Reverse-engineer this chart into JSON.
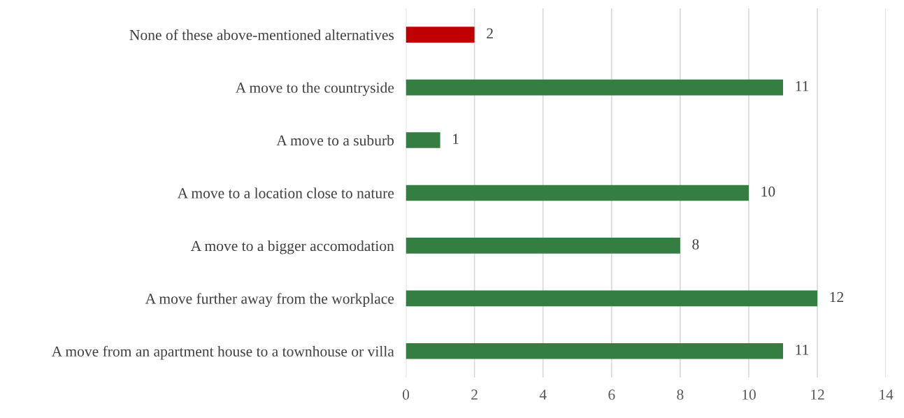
{
  "chart_data": {
    "type": "bar",
    "orientation": "horizontal",
    "categories": [
      "None of these above-mentioned alternatives",
      "A move to the countryside",
      "A move to a suburb",
      "A move to a location close to nature",
      "A move to a bigger accomodation",
      "A move further away from the workplace",
      "A move from an apartment house to a townhouse or villa"
    ],
    "values": [
      2,
      11,
      1,
      10,
      8,
      12,
      11
    ],
    "colors": [
      "#c00000",
      "#357e41",
      "#357e41",
      "#357e41",
      "#357e41",
      "#357e41",
      "#357e41"
    ],
    "xlim": [
      0,
      14
    ],
    "xticks": [
      0,
      2,
      4,
      6,
      8,
      10,
      12,
      14
    ],
    "grid": "x",
    "data_labels": true
  }
}
